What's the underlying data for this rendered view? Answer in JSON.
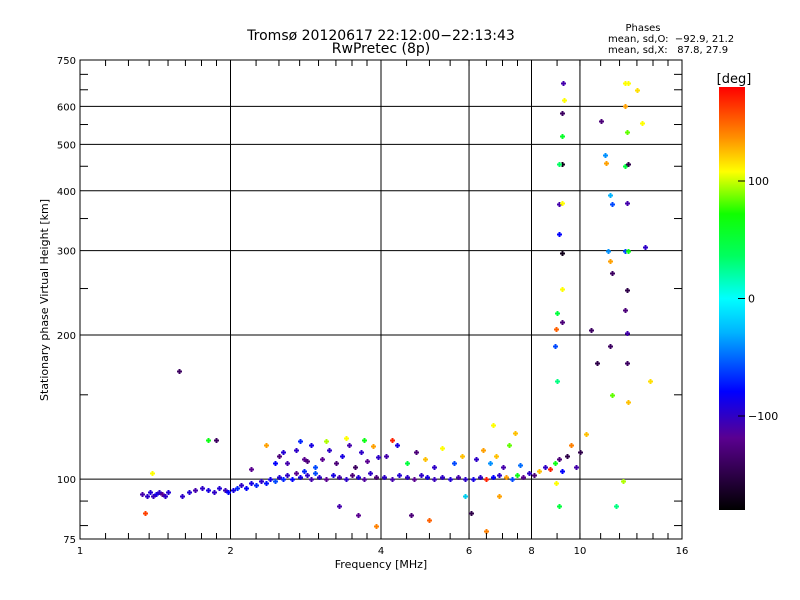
{
  "chart_data": {
    "type": "scatter",
    "title": "Tromsø 20120617 22:12:00−22:13:43",
    "subtitle": "RwPretec (8p)",
    "xlabel": "Frequency [MHz]",
    "ylabel": "Stationary phase Virtual Height [km]",
    "xscale": "log2",
    "yscale": "log",
    "xlim": [
      1,
      16
    ],
    "ylim": [
      75,
      750
    ],
    "xticks": [
      1,
      2,
      4,
      6,
      8,
      10,
      16
    ],
    "yticks": [
      75,
      100,
      200,
      300,
      400,
      500,
      600,
      750
    ],
    "grid": true,
    "stats": {
      "heading": "Phases",
      "line_o": "mean, sd,O:  −92.9, 21.2",
      "line_x": "mean, sd,X:   87.8, 27.9"
    },
    "colorbar": {
      "label": "[deg]",
      "range": [
        -180,
        180
      ],
      "ticks": [
        100,
        0,
        -100
      ],
      "tick_labels": [
        "100",
        "0",
        "−100"
      ],
      "colormap": "rainbow (black-purple-blue-cyan-green-yellow-red)"
    },
    "points_fields": [
      "frequency_mhz",
      "height_km",
      "phase_deg"
    ],
    "points": [
      [
        1.33,
        93,
        -110
      ],
      [
        1.36,
        92,
        -100
      ],
      [
        1.38,
        94,
        -95
      ],
      [
        1.4,
        92,
        -105
      ],
      [
        1.42,
        93,
        -90
      ],
      [
        1.44,
        94,
        -100
      ],
      [
        1.46,
        93,
        -120
      ],
      [
        1.48,
        92,
        -100
      ],
      [
        1.5,
        94,
        -95
      ],
      [
        1.35,
        85,
        160
      ],
      [
        1.39,
        103,
        100
      ],
      [
        1.6,
        92,
        -100
      ],
      [
        1.65,
        94,
        -95
      ],
      [
        1.7,
        95,
        -110
      ],
      [
        1.75,
        96,
        -100
      ],
      [
        1.8,
        95,
        -90
      ],
      [
        1.85,
        94,
        -100
      ],
      [
        1.9,
        96,
        -95
      ],
      [
        1.95,
        95,
        -105
      ],
      [
        1.98,
        94,
        -80
      ],
      [
        1.58,
        168,
        -140
      ],
      [
        1.8,
        121,
        60
      ],
      [
        1.87,
        121,
        -140
      ],
      [
        2.02,
        95,
        -90
      ],
      [
        2.06,
        96,
        -70
      ],
      [
        2.1,
        97,
        -100
      ],
      [
        2.15,
        96,
        -80
      ],
      [
        2.2,
        98,
        -90
      ],
      [
        2.25,
        97,
        -70
      ],
      [
        2.3,
        99,
        -100
      ],
      [
        2.35,
        98,
        -75
      ],
      [
        2.4,
        100,
        -90
      ],
      [
        2.45,
        99,
        -60
      ],
      [
        2.5,
        101,
        -95
      ],
      [
        2.55,
        100,
        -70
      ],
      [
        2.6,
        102,
        -100
      ],
      [
        2.65,
        100,
        -80
      ],
      [
        2.7,
        103,
        -120
      ],
      [
        2.75,
        101,
        -90
      ],
      [
        2.8,
        104,
        -70
      ],
      [
        2.85,
        102,
        -100
      ],
      [
        2.9,
        100,
        -110
      ],
      [
        2.95,
        103,
        -60
      ],
      [
        2.2,
        105,
        -120
      ],
      [
        2.35,
        118,
        130
      ],
      [
        2.5,
        112,
        -130
      ],
      [
        2.6,
        108,
        -110
      ],
      [
        2.7,
        115,
        -100
      ],
      [
        2.8,
        110,
        -120
      ],
      [
        2.9,
        118,
        -90
      ],
      [
        2.95,
        106,
        -60
      ],
      [
        2.45,
        108,
        -80
      ],
      [
        2.55,
        114,
        -95
      ],
      [
        2.75,
        120,
        -70
      ],
      [
        2.85,
        109,
        -130
      ],
      [
        3.0,
        101,
        -100
      ],
      [
        3.1,
        100,
        -120
      ],
      [
        3.2,
        102,
        -90
      ],
      [
        3.3,
        101,
        -110
      ],
      [
        3.4,
        100,
        -100
      ],
      [
        3.5,
        102,
        -130
      ],
      [
        3.6,
        101,
        -95
      ],
      [
        3.7,
        100,
        -115
      ],
      [
        3.8,
        103,
        -100
      ],
      [
        3.9,
        101,
        -130
      ],
      [
        3.05,
        110,
        -120
      ],
      [
        3.15,
        115,
        -100
      ],
      [
        3.25,
        108,
        -130
      ],
      [
        3.35,
        112,
        -90
      ],
      [
        3.45,
        118,
        -110
      ],
      [
        3.55,
        106,
        -140
      ],
      [
        3.65,
        114,
        -100
      ],
      [
        3.75,
        109,
        -120
      ],
      [
        3.85,
        117,
        130
      ],
      [
        3.95,
        111,
        -100
      ],
      [
        3.1,
        120,
        90
      ],
      [
        3.4,
        122,
        100
      ],
      [
        3.7,
        121,
        60
      ],
      [
        3.3,
        88,
        -110
      ],
      [
        3.6,
        84,
        -120
      ],
      [
        3.9,
        80,
        140
      ],
      [
        4.05,
        101,
        -100
      ],
      [
        4.2,
        100,
        -110
      ],
      [
        4.35,
        102,
        -95
      ],
      [
        4.5,
        101,
        -100
      ],
      [
        4.65,
        100,
        -120
      ],
      [
        4.8,
        102,
        -100
      ],
      [
        4.95,
        101,
        -90
      ],
      [
        5.1,
        100,
        -105
      ],
      [
        5.3,
        101,
        -100
      ],
      [
        5.5,
        100,
        -95
      ],
      [
        5.7,
        101,
        -110
      ],
      [
        5.9,
        100,
        -100
      ],
      [
        4.1,
        112,
        -110
      ],
      [
        4.3,
        118,
        -90
      ],
      [
        4.5,
        108,
        40
      ],
      [
        4.7,
        114,
        -130
      ],
      [
        4.9,
        110,
        120
      ],
      [
        5.1,
        106,
        -100
      ],
      [
        5.3,
        116,
        100
      ],
      [
        5.6,
        108,
        -60
      ],
      [
        5.8,
        112,
        120
      ],
      [
        4.2,
        121,
        170
      ],
      [
        4.6,
        84,
        -130
      ],
      [
        5.0,
        82,
        150
      ],
      [
        5.9,
        92,
        -20
      ],
      [
        6.1,
        100,
        -90
      ],
      [
        6.3,
        101,
        -100
      ],
      [
        6.5,
        100,
        170
      ],
      [
        6.7,
        101,
        -80
      ],
      [
        6.9,
        102,
        -100
      ],
      [
        7.1,
        101,
        130
      ],
      [
        7.3,
        100,
        -60
      ],
      [
        7.5,
        102,
        60
      ],
      [
        7.7,
        101,
        -120
      ],
      [
        7.9,
        103,
        -100
      ],
      [
        6.2,
        110,
        -100
      ],
      [
        6.4,
        115,
        130
      ],
      [
        6.6,
        108,
        -40
      ],
      [
        6.8,
        112,
        120
      ],
      [
        7.0,
        106,
        -110
      ],
      [
        7.2,
        118,
        80
      ],
      [
        7.6,
        107,
        -50
      ],
      [
        6.05,
        85,
        -150
      ],
      [
        6.5,
        78,
        140
      ],
      [
        6.9,
        92,
        130
      ],
      [
        7.4,
        125,
        120
      ],
      [
        6.7,
        130,
        100
      ],
      [
        8.1,
        102,
        -130
      ],
      [
        8.3,
        104,
        120
      ],
      [
        8.5,
        106,
        -100
      ],
      [
        8.7,
        105,
        170
      ],
      [
        8.9,
        108,
        60
      ],
      [
        8.95,
        98,
        100
      ],
      [
        9.1,
        110,
        -130
      ],
      [
        9.2,
        104,
        -80
      ],
      [
        9.4,
        112,
        -150
      ],
      [
        9.6,
        118,
        140
      ],
      [
        9.8,
        106,
        -110
      ],
      [
        10.0,
        114,
        -150
      ],
      [
        10.3,
        124,
        120
      ],
      [
        8.9,
        190,
        -60
      ],
      [
        8.95,
        206,
        150
      ],
      [
        9.0,
        222,
        40
      ],
      [
        9.2,
        213,
        -130
      ],
      [
        9.2,
        250,
        100
      ],
      [
        9.2,
        297,
        -170
      ],
      [
        9.1,
        325,
        -80
      ],
      [
        9.1,
        375,
        -110
      ],
      [
        9.2,
        378,
        100
      ],
      [
        9.2,
        455,
        -170
      ],
      [
        9.1,
        455,
        30
      ],
      [
        9.2,
        520,
        50
      ],
      [
        9.2,
        580,
        -140
      ],
      [
        9.3,
        620,
        100
      ],
      [
        9.25,
        670,
        -110
      ],
      [
        9.0,
        160,
        20
      ],
      [
        9.1,
        88,
        40
      ],
      [
        10.5,
        205,
        -140
      ],
      [
        10.8,
        175,
        -150
      ],
      [
        11.0,
        560,
        -130
      ],
      [
        11.2,
        476,
        -40
      ],
      [
        11.3,
        458,
        130
      ],
      [
        11.5,
        392,
        -30
      ],
      [
        11.6,
        376,
        -60
      ],
      [
        11.4,
        300,
        -40
      ],
      [
        11.5,
        285,
        130
      ],
      [
        11.6,
        270,
        -140
      ],
      [
        11.5,
        190,
        -140
      ],
      [
        11.6,
        150,
        80
      ],
      [
        12.3,
        670,
        100
      ],
      [
        12.5,
        670,
        100
      ],
      [
        12.3,
        600,
        130
      ],
      [
        12.4,
        530,
        80
      ],
      [
        12.3,
        450,
        40
      ],
      [
        12.5,
        455,
        -150
      ],
      [
        12.4,
        378,
        -110
      ],
      [
        12.3,
        300,
        -60
      ],
      [
        12.5,
        300,
        60
      ],
      [
        12.4,
        248,
        -150
      ],
      [
        12.3,
        226,
        -130
      ],
      [
        12.4,
        202,
        -110
      ],
      [
        12.4,
        175,
        -140
      ],
      [
        12.5,
        145,
        120
      ],
      [
        13.0,
        650,
        110
      ],
      [
        13.3,
        555,
        100
      ],
      [
        13.5,
        305,
        -100
      ],
      [
        13.8,
        160,
        110
      ],
      [
        12.2,
        99,
        90
      ],
      [
        11.8,
        88,
        20
      ]
    ]
  }
}
